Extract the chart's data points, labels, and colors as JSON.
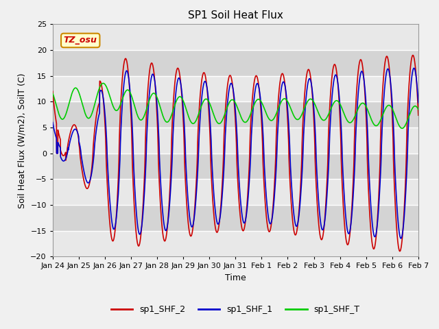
{
  "title": "SP1 Soil Heat Flux",
  "xlabel": "Time",
  "ylabel": "Soil Heat Flux (W/m2), SoilT (C)",
  "ylim": [
    -20,
    25
  ],
  "yticks": [
    -20,
    -15,
    -10,
    -5,
    0,
    5,
    10,
    15,
    20,
    25
  ],
  "line_colors": {
    "sp1_SHF_2": "#cc0000",
    "sp1_SHF_1": "#0000cc",
    "sp1_SHF_T": "#00cc00"
  },
  "legend_labels": [
    "sp1_SHF_2",
    "sp1_SHF_1",
    "sp1_SHF_T"
  ],
  "annotation_text": "TZ_osu",
  "annotation_color": "#cc0000",
  "annotation_bg": "#ffffcc",
  "annotation_border": "#cc8800",
  "title_fontsize": 11,
  "axis_fontsize": 9,
  "tick_fontsize": 8,
  "xtick_labels": [
    "Jan 24",
    "Jan 25",
    "Jan 26",
    "Jan 27",
    "Jan 28",
    "Jan 29",
    "Jan 30",
    "Jan 31",
    "Feb 1",
    "Feb 2",
    "Feb 3",
    "Feb 4",
    "Feb 5",
    "Feb 6",
    "Feb 7"
  ],
  "band_colors": [
    "#e8e8e8",
    "#d0d0d0"
  ]
}
